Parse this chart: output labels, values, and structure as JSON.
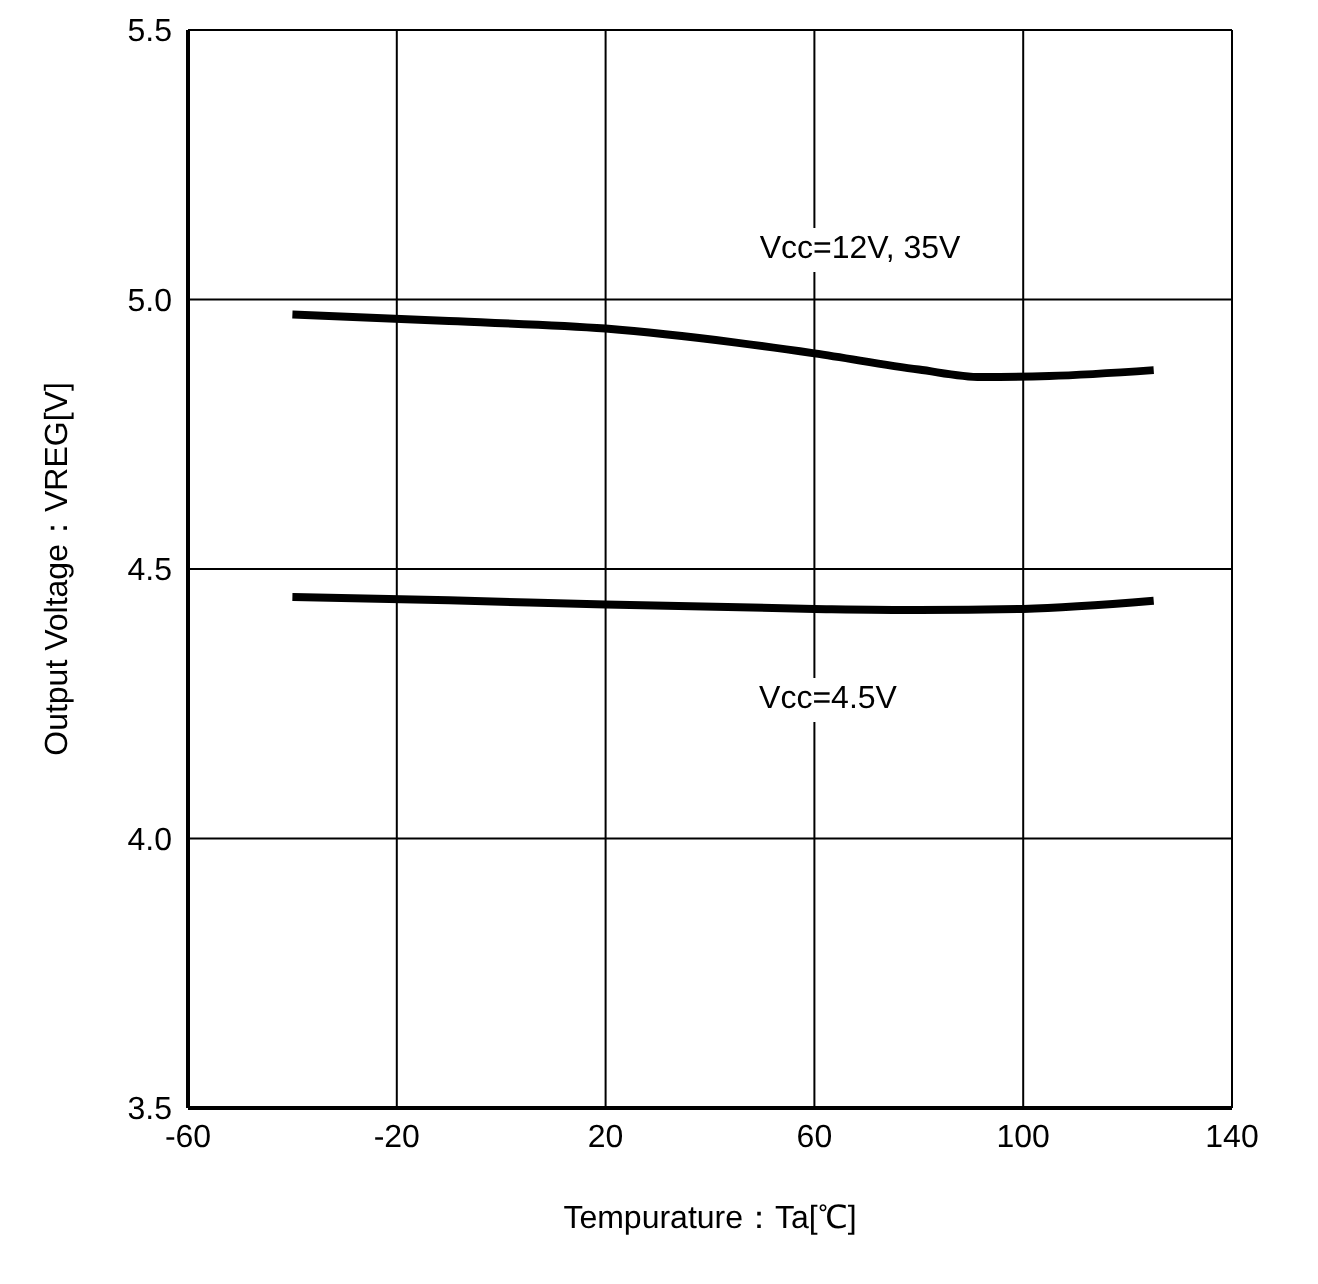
{
  "chart_data": {
    "type": "line",
    "xlabel": "Tempurature：Ta[℃]",
    "ylabel": "Output Voltage：VREG[V]",
    "xlim": [
      -60,
      140
    ],
    "xticks": [
      -60,
      -20,
      20,
      60,
      100,
      140
    ],
    "ylim": [
      3.5,
      5.5
    ],
    "yticks": [
      3.5,
      {
        "value": 4,
        "label": "4.0"
      },
      4.5,
      {
        "value": 5,
        "label": "5.0"
      },
      5.5
    ],
    "grid": true,
    "marker": "none",
    "line_style": "solid",
    "series": [
      {
        "color": "#000000",
        "x": [
          -40,
          -10,
          20,
          45,
          60,
          80,
          92,
          105,
          125
        ],
        "values": [
          4.972,
          4.96,
          4.946,
          4.92,
          4.9,
          4.87,
          4.856,
          4.858,
          4.869
        ]
      },
      {
        "color": "#000000",
        "x": [
          -40,
          -10,
          20,
          60,
          80,
          100,
          125
        ],
        "values": [
          4.448,
          4.442,
          4.434,
          4.426,
          4.424,
          4.426,
          4.441
        ]
      }
    ],
    "annotations": [
      "Vcc=12V, 35V",
      "Vcc=4.5V"
    ]
  }
}
